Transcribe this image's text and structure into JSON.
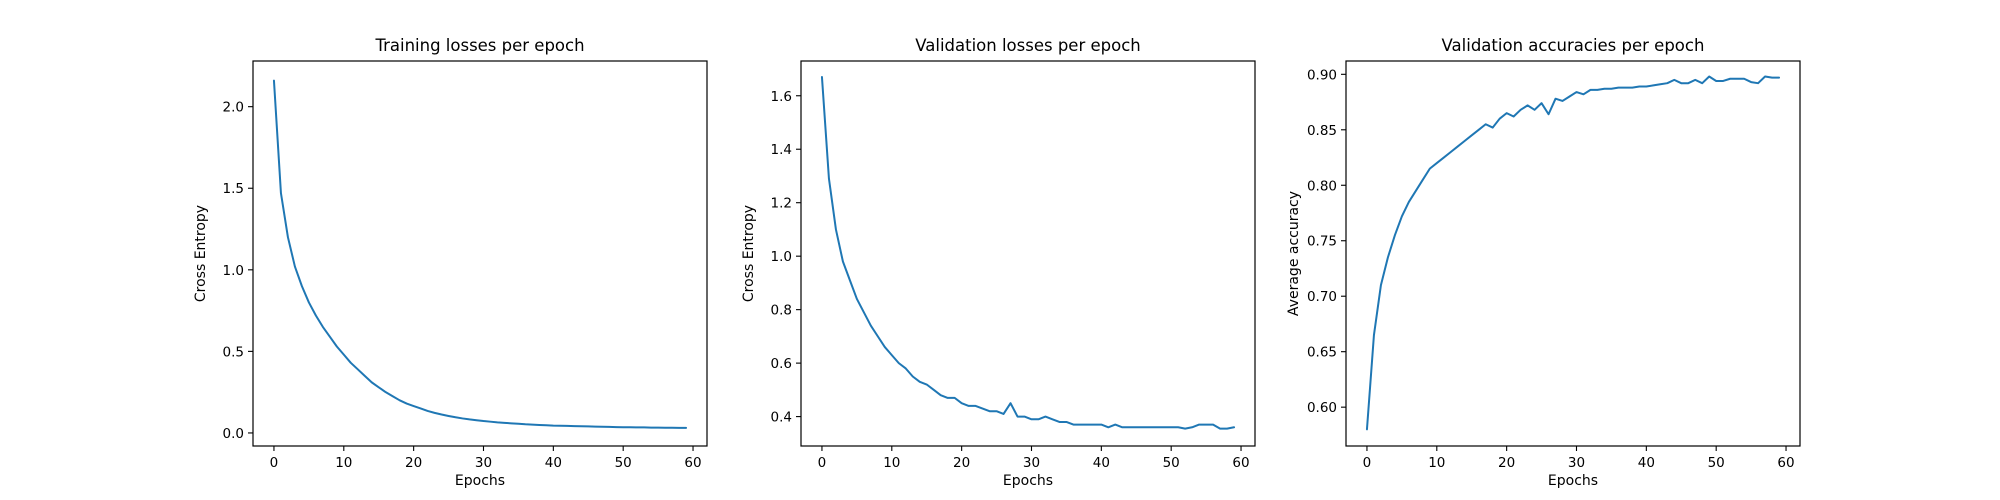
{
  "series_color": "#1f77b4",
  "chart_data": [
    {
      "type": "line",
      "title": "Training losses per epoch",
      "xlabel": "Epochs",
      "ylabel": "Cross Entropy",
      "xlim": [
        -3,
        62
      ],
      "ylim": [
        -0.08,
        2.28
      ],
      "xticks": [
        0,
        10,
        20,
        30,
        40,
        50,
        60
      ],
      "yticks": [
        0.0,
        0.5,
        1.0,
        1.5,
        2.0
      ],
      "ytick_labels": [
        "0.0",
        "0.5",
        "1.0",
        "1.5",
        "2.0"
      ],
      "grid": false,
      "series": [
        {
          "x": [
            0,
            1,
            2,
            3,
            4,
            5,
            6,
            7,
            8,
            9,
            10,
            11,
            12,
            13,
            14,
            15,
            16,
            17,
            18,
            19,
            20,
            21,
            22,
            23,
            24,
            25,
            26,
            27,
            28,
            29,
            30,
            31,
            32,
            33,
            34,
            35,
            36,
            37,
            38,
            39,
            40,
            41,
            42,
            43,
            44,
            45,
            46,
            47,
            48,
            49,
            50,
            51,
            52,
            53,
            54,
            55,
            56,
            57,
            58,
            59
          ],
          "y": [
            2.16,
            1.47,
            1.2,
            1.02,
            0.9,
            0.8,
            0.72,
            0.65,
            0.59,
            0.53,
            0.48,
            0.43,
            0.39,
            0.35,
            0.31,
            0.28,
            0.25,
            0.225,
            0.2,
            0.18,
            0.165,
            0.15,
            0.135,
            0.123,
            0.113,
            0.104,
            0.096,
            0.089,
            0.083,
            0.078,
            0.073,
            0.069,
            0.065,
            0.062,
            0.059,
            0.056,
            0.053,
            0.051,
            0.049,
            0.047,
            0.045,
            0.044,
            0.043,
            0.042,
            0.041,
            0.04,
            0.039,
            0.038,
            0.037,
            0.036,
            0.035,
            0.035,
            0.034,
            0.034,
            0.033,
            0.033,
            0.032,
            0.032,
            0.031,
            0.031
          ]
        }
      ]
    },
    {
      "type": "line",
      "title": "Validation losses per epoch",
      "xlabel": "Epochs",
      "ylabel": "Cross Entropy",
      "xlim": [
        -3,
        62
      ],
      "ylim": [
        0.29,
        1.73
      ],
      "xticks": [
        0,
        10,
        20,
        30,
        40,
        50,
        60
      ],
      "yticks": [
        0.4,
        0.6,
        0.8,
        1.0,
        1.2,
        1.4,
        1.6
      ],
      "ytick_labels": [
        "0.4",
        "0.6",
        "0.8",
        "1.0",
        "1.2",
        "1.4",
        "1.6"
      ],
      "grid": false,
      "series": [
        {
          "x": [
            0,
            1,
            2,
            3,
            4,
            5,
            6,
            7,
            8,
            9,
            10,
            11,
            12,
            13,
            14,
            15,
            16,
            17,
            18,
            19,
            20,
            21,
            22,
            23,
            24,
            25,
            26,
            27,
            28,
            29,
            30,
            31,
            32,
            33,
            34,
            35,
            36,
            37,
            38,
            39,
            40,
            41,
            42,
            43,
            44,
            45,
            46,
            47,
            48,
            49,
            50,
            51,
            52,
            53,
            54,
            55,
            56,
            57,
            58,
            59
          ],
          "y": [
            1.67,
            1.29,
            1.1,
            0.98,
            0.91,
            0.84,
            0.79,
            0.74,
            0.7,
            0.66,
            0.63,
            0.6,
            0.58,
            0.55,
            0.53,
            0.52,
            0.5,
            0.48,
            0.47,
            0.47,
            0.45,
            0.44,
            0.44,
            0.43,
            0.42,
            0.42,
            0.41,
            0.45,
            0.4,
            0.4,
            0.39,
            0.39,
            0.4,
            0.39,
            0.38,
            0.38,
            0.37,
            0.37,
            0.37,
            0.37,
            0.37,
            0.36,
            0.37,
            0.36,
            0.36,
            0.36,
            0.36,
            0.36,
            0.36,
            0.36,
            0.36,
            0.36,
            0.355,
            0.36,
            0.37,
            0.37,
            0.37,
            0.355,
            0.355,
            0.36
          ]
        }
      ]
    },
    {
      "type": "line",
      "title": "Validation accuracies per epoch",
      "xlabel": "Epochs",
      "ylabel": "Average accuracy",
      "xlim": [
        -3,
        62
      ],
      "ylim": [
        0.565,
        0.912
      ],
      "xticks": [
        0,
        10,
        20,
        30,
        40,
        50,
        60
      ],
      "yticks": [
        0.6,
        0.65,
        0.7,
        0.75,
        0.8,
        0.85,
        0.9
      ],
      "ytick_labels": [
        "0.60",
        "0.65",
        "0.70",
        "0.75",
        "0.80",
        "0.85",
        "0.90"
      ],
      "grid": false,
      "series": [
        {
          "x": [
            0,
            1,
            2,
            3,
            4,
            5,
            6,
            7,
            8,
            9,
            10,
            11,
            12,
            13,
            14,
            15,
            16,
            17,
            18,
            19,
            20,
            21,
            22,
            23,
            24,
            25,
            26,
            27,
            28,
            29,
            30,
            31,
            32,
            33,
            34,
            35,
            36,
            37,
            38,
            39,
            40,
            41,
            42,
            43,
            44,
            45,
            46,
            47,
            48,
            49,
            50,
            51,
            52,
            53,
            54,
            55,
            56,
            57,
            58,
            59
          ],
          "y": [
            0.58,
            0.665,
            0.71,
            0.735,
            0.755,
            0.772,
            0.785,
            0.795,
            0.805,
            0.815,
            0.82,
            0.825,
            0.83,
            0.835,
            0.84,
            0.845,
            0.85,
            0.855,
            0.852,
            0.86,
            0.865,
            0.862,
            0.868,
            0.872,
            0.868,
            0.874,
            0.864,
            0.878,
            0.876,
            0.88,
            0.884,
            0.882,
            0.886,
            0.886,
            0.887,
            0.887,
            0.888,
            0.888,
            0.888,
            0.889,
            0.889,
            0.89,
            0.891,
            0.892,
            0.895,
            0.892,
            0.892,
            0.895,
            0.892,
            0.898,
            0.894,
            0.894,
            0.896,
            0.896,
            0.896,
            0.893,
            0.892,
            0.898,
            0.897,
            0.897
          ]
        }
      ]
    }
  ]
}
